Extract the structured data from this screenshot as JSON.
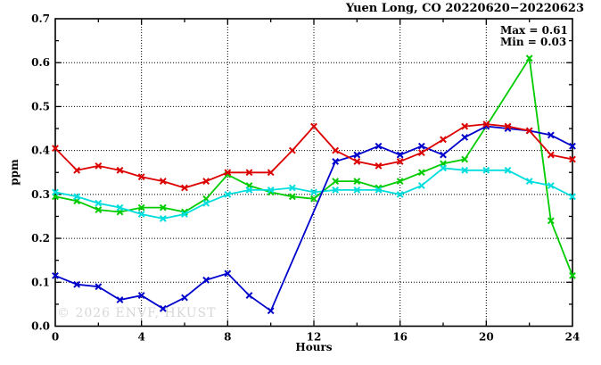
{
  "watermark": {
    "text": "© 2026 ENVF, HKUST",
    "color": "#d7d7d7"
  },
  "chart_data": {
    "type": "line",
    "title": "Yuen Long, CO 20220620−20220623",
    "annotation": {
      "max_label": "Max = 0.61",
      "min_label": "Min = 0.03"
    },
    "xlabel": "Hours",
    "ylabel": "ppm",
    "xlim": [
      0,
      24
    ],
    "ylim": [
      0.0,
      0.7
    ],
    "x_major_ticks": [
      0,
      4,
      8,
      12,
      16,
      20,
      24
    ],
    "x_minor_ticks": [
      2,
      6,
      10,
      14,
      18,
      22
    ],
    "y_major_step": 0.1,
    "y_minor_step": 0.05,
    "grid": "dotted black at major ticks, both axes",
    "legend_position": "none",
    "marker": "x-cross",
    "x": [
      0,
      1,
      2,
      3,
      4,
      5,
      6,
      7,
      8,
      9,
      10,
      11,
      12,
      13,
      14,
      15,
      16,
      17,
      18,
      19,
      20,
      21,
      22,
      23,
      24
    ],
    "series": [
      {
        "name": "series-green",
        "color": "#00cc00",
        "values": [
          0.295,
          0.285,
          0.265,
          0.26,
          0.27,
          0.27,
          0.26,
          0.29,
          0.345,
          0.32,
          0.305,
          0.295,
          0.29,
          0.33,
          0.33,
          0.315,
          0.33,
          0.35,
          0.37,
          0.38,
          0.455,
          null,
          0.61,
          0.24,
          0.115
        ]
      },
      {
        "name": "series-cyan",
        "color": "#00dddd",
        "values": [
          0.305,
          0.295,
          0.28,
          0.27,
          0.255,
          0.245,
          0.255,
          0.28,
          0.3,
          0.31,
          0.31,
          0.315,
          0.305,
          0.31,
          0.31,
          0.31,
          0.3,
          0.32,
          0.36,
          0.355,
          0.355,
          0.355,
          0.33,
          0.32,
          0.295
        ]
      },
      {
        "name": "series-blue",
        "color": "#0000cc",
        "values": [
          0.115,
          0.095,
          0.09,
          0.06,
          0.07,
          0.04,
          0.065,
          0.105,
          0.12,
          0.07,
          0.035,
          null,
          null,
          0.375,
          0.39,
          0.41,
          0.39,
          0.41,
          0.39,
          0.43,
          0.455,
          0.45,
          0.445,
          0.435,
          0.41
        ]
      },
      {
        "name": "series-red",
        "color": "#dd0000",
        "values": [
          0.405,
          0.355,
          0.365,
          0.355,
          0.34,
          0.33,
          0.315,
          0.33,
          0.35,
          0.35,
          0.35,
          0.4,
          0.455,
          0.4,
          0.375,
          0.365,
          0.375,
          0.395,
          0.425,
          0.455,
          0.46,
          0.455,
          0.445,
          0.39,
          0.38
        ]
      }
    ]
  }
}
